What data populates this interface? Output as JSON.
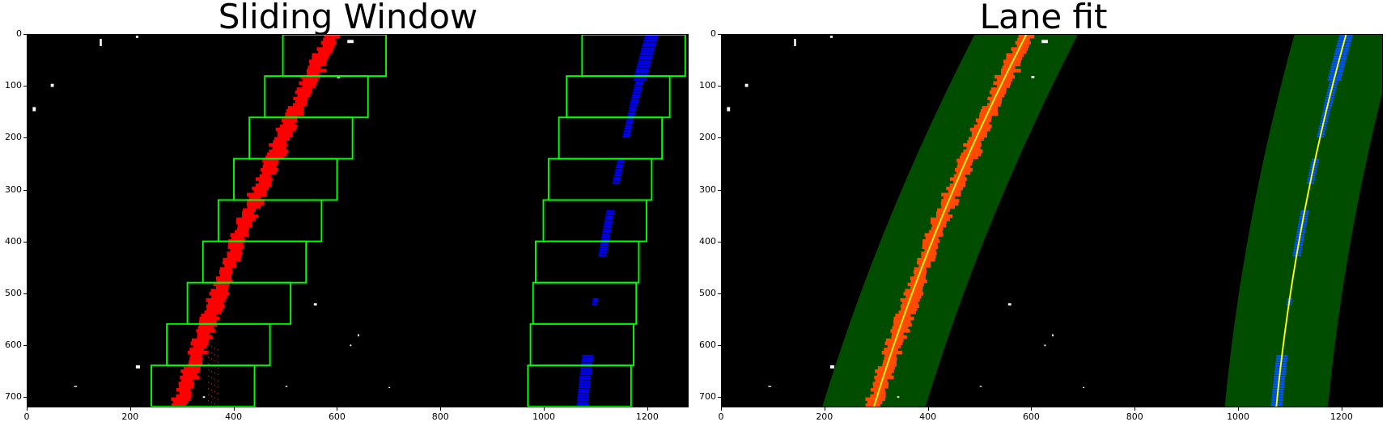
{
  "panels": [
    {
      "id": "left",
      "title": "Sliding Window",
      "x_ticks": [
        0,
        200,
        400,
        600,
        800,
        1000,
        1200
      ],
      "y_ticks": [
        0,
        100,
        200,
        300,
        400,
        500,
        600,
        700
      ],
      "x_range": [
        0,
        1280
      ],
      "y_range": [
        0,
        720
      ]
    },
    {
      "id": "right",
      "title": "Lane fit",
      "x_ticks": [
        0,
        200,
        400,
        600,
        800,
        1000,
        1200
      ],
      "y_ticks": [
        0,
        100,
        200,
        300,
        400,
        500,
        600,
        700
      ],
      "x_range": [
        0,
        1280
      ],
      "y_range": [
        0,
        720
      ]
    }
  ],
  "colors": {
    "background": "#000000",
    "left_lane_pixels_window": "#ff0000",
    "right_lane_pixels_window": "#0000ff",
    "sliding_window_box": "#00ff00",
    "left_lane_pixels_fit": "#ff4a00",
    "right_lane_pixels_fit": "#0055ff",
    "search_band": "#004d00",
    "fit_line": "#ffff00",
    "noise": "#ffffff"
  }
}
